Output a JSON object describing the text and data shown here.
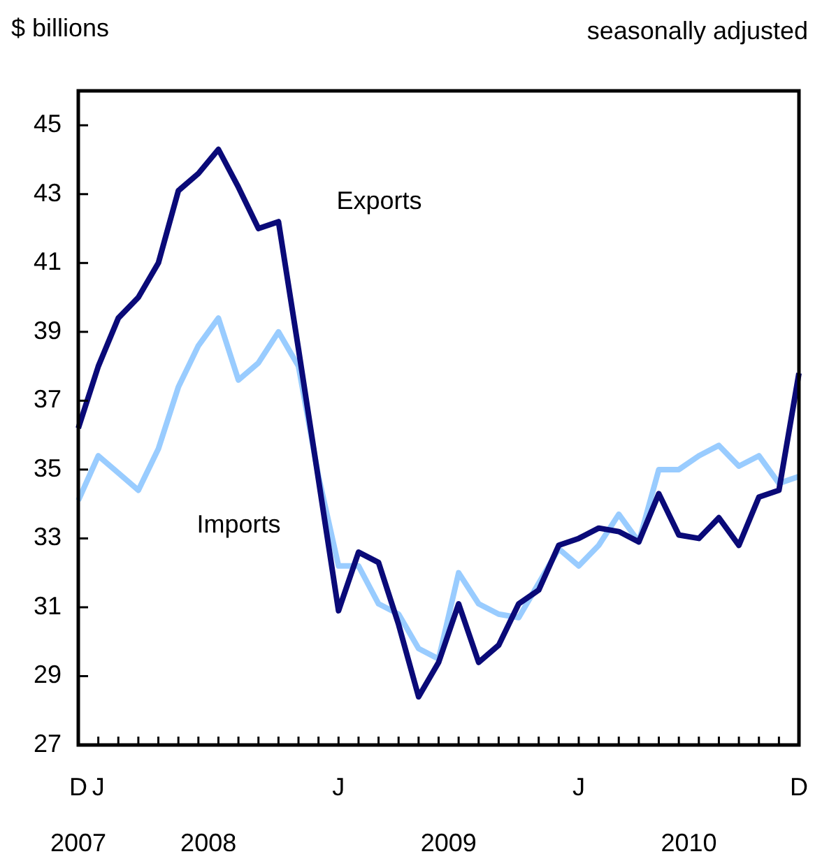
{
  "chart_data": {
    "type": "line",
    "ylabel": "$ billions",
    "subtitle": "seasonally adjusted",
    "categories": [
      "D",
      "J",
      null,
      null,
      null,
      null,
      null,
      null,
      null,
      null,
      null,
      null,
      null,
      "J",
      null,
      null,
      null,
      null,
      null,
      null,
      null,
      null,
      null,
      null,
      null,
      "J",
      null,
      null,
      null,
      null,
      null,
      null,
      null,
      null,
      null,
      null,
      "D"
    ],
    "series": [
      {
        "name": "Exports",
        "color": "#0a0a78",
        "values": [
          36.2,
          38.0,
          39.4,
          40.0,
          41.0,
          43.1,
          43.6,
          44.3,
          43.2,
          42.0,
          42.2,
          38.5,
          34.7,
          30.9,
          32.6,
          32.3,
          30.5,
          28.4,
          29.4,
          31.1,
          29.4,
          29.9,
          31.1,
          31.5,
          32.8,
          33.0,
          33.3,
          33.2,
          32.9,
          34.3,
          33.1,
          33.0,
          33.6,
          32.8,
          34.2,
          34.4,
          37.8
        ]
      },
      {
        "name": "Imports",
        "color": "#99ccff",
        "values": [
          34.1,
          35.4,
          34.9,
          34.4,
          35.6,
          37.4,
          38.6,
          39.4,
          37.6,
          38.1,
          39.0,
          38.0,
          34.8,
          32.2,
          32.2,
          31.1,
          30.8,
          29.8,
          29.5,
          32.0,
          31.1,
          30.8,
          30.7,
          31.7,
          32.7,
          32.2,
          32.8,
          33.7,
          32.9,
          35.0,
          35.0,
          35.4,
          35.7,
          35.1,
          35.4,
          34.6,
          34.8
        ]
      }
    ],
    "annotations": [
      "2007",
      "2008",
      "2009",
      "2010"
    ],
    "ylim": [
      27,
      46
    ],
    "yticks": [
      27,
      29,
      31,
      33,
      35,
      37,
      39,
      41,
      43,
      45
    ],
    "grid": false,
    "legend": false,
    "marker": "none",
    "line_style": "solid"
  }
}
